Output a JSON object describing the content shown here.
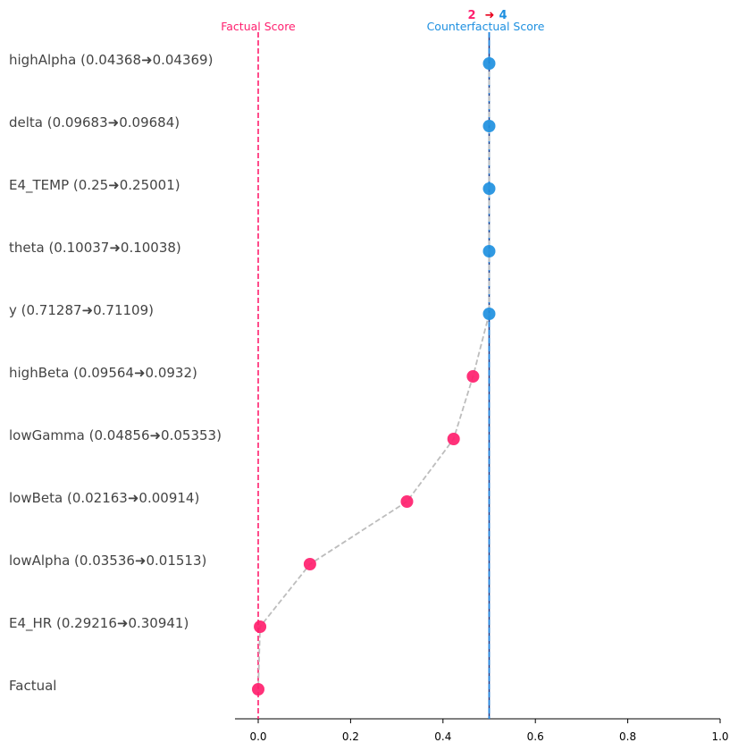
{
  "chart_data": {
    "type": "scatter",
    "title": "",
    "xlabel": "",
    "ylabel": "",
    "xlim": [
      -0.05,
      1.0
    ],
    "x_ticks": [
      0.0,
      0.2,
      0.4,
      0.6,
      0.8,
      1.0
    ],
    "x_tick_labels": [
      "0.0",
      "0.2",
      "0.4",
      "0.6",
      "0.8",
      "1.0"
    ],
    "grid": false,
    "factual_score": 0.0,
    "counterfactual_score": 0.5,
    "factual_score_label": "Factual Score",
    "counterfactual_score_label": "Counterfactual Score",
    "factual_class": "2",
    "counterfactual_class": "4",
    "class_arrow": "➜",
    "points": [
      {
        "label": "highAlpha (0.04368➜0.04369)",
        "x": 0.5
      },
      {
        "label": "delta (0.09683➜0.09684)",
        "x": 0.5
      },
      {
        "label": "E4_TEMP (0.25➜0.25001)",
        "x": 0.5
      },
      {
        "label": "theta (0.10037➜0.10038)",
        "x": 0.5
      },
      {
        "label": "y (0.71287➜0.71109)",
        "x": 0.5
      },
      {
        "label": "highBeta (0.09564➜0.0932)",
        "x": 0.465
      },
      {
        "label": "lowGamma (0.04856➜0.05353)",
        "x": 0.423
      },
      {
        "label": "lowBeta (0.02163➜0.00914)",
        "x": 0.322
      },
      {
        "label": "lowAlpha (0.03536➜0.01513)",
        "x": 0.112
      },
      {
        "label": "E4_HR (0.29216➜0.30941)",
        "x": 0.004
      },
      {
        "label": "Factual",
        "x": 0.0
      }
    ],
    "colors": {
      "factual": "#ff1f6e",
      "counterfactual": "#1e90e0",
      "class_arrow": "#e8001c",
      "path": "#bdbdbd",
      "cf_line": "#1e88e5"
    }
  }
}
